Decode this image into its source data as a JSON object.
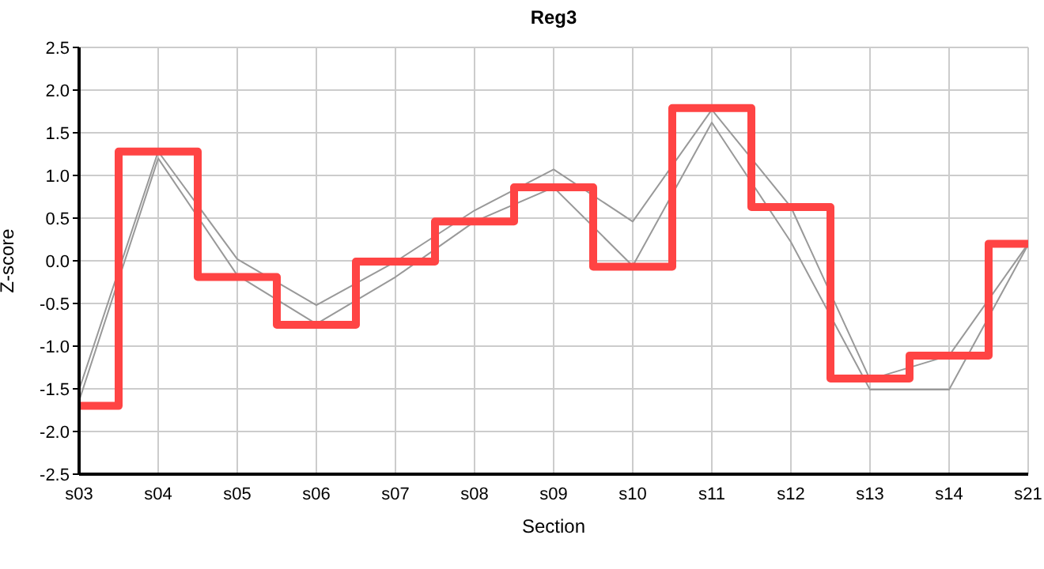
{
  "chart_data": {
    "type": "line",
    "title": "Reg3",
    "xlabel": "Section",
    "ylabel": "Z-score",
    "categories": [
      "s03",
      "s04",
      "s05",
      "s06",
      "s07",
      "s08",
      "s09",
      "s10",
      "s11",
      "s12",
      "s13",
      "s14",
      "s21"
    ],
    "series": [
      {
        "color": "#999999",
        "values": [
          -1.51,
          1.28,
          0.02,
          -0.52,
          -0.01,
          0.59,
          1.07,
          0.46,
          1.77,
          0.63,
          -1.39,
          -1.11,
          0.2
        ]
      },
      {
        "color": "#999999",
        "values": [
          -1.64,
          1.2,
          -0.17,
          -0.74,
          -0.19,
          0.46,
          0.86,
          -0.06,
          1.62,
          0.22,
          -1.51,
          -1.51,
          0.19
        ]
      },
      {
        "type": "step",
        "color": "#ff4444",
        "values": [
          -1.7,
          1.28,
          -0.19,
          -0.75,
          -0.01,
          0.46,
          0.86,
          -0.07,
          1.79,
          0.63,
          -1.38,
          -1.11,
          0.2
        ]
      }
    ],
    "ylim": [
      -2.5,
      2.5
    ],
    "yticks": [
      -2.5,
      {
        "value": -2,
        "label": "-2.0"
      },
      -1.5,
      {
        "value": -1,
        "label": "-1.0"
      },
      -0.5,
      {
        "value": 0,
        "label": "0.0"
      },
      0.5,
      {
        "value": 1,
        "label": "1.0"
      },
      1.5,
      {
        "value": 2,
        "label": "2.0"
      },
      2.5
    ],
    "grid": true,
    "marker": "none"
  }
}
